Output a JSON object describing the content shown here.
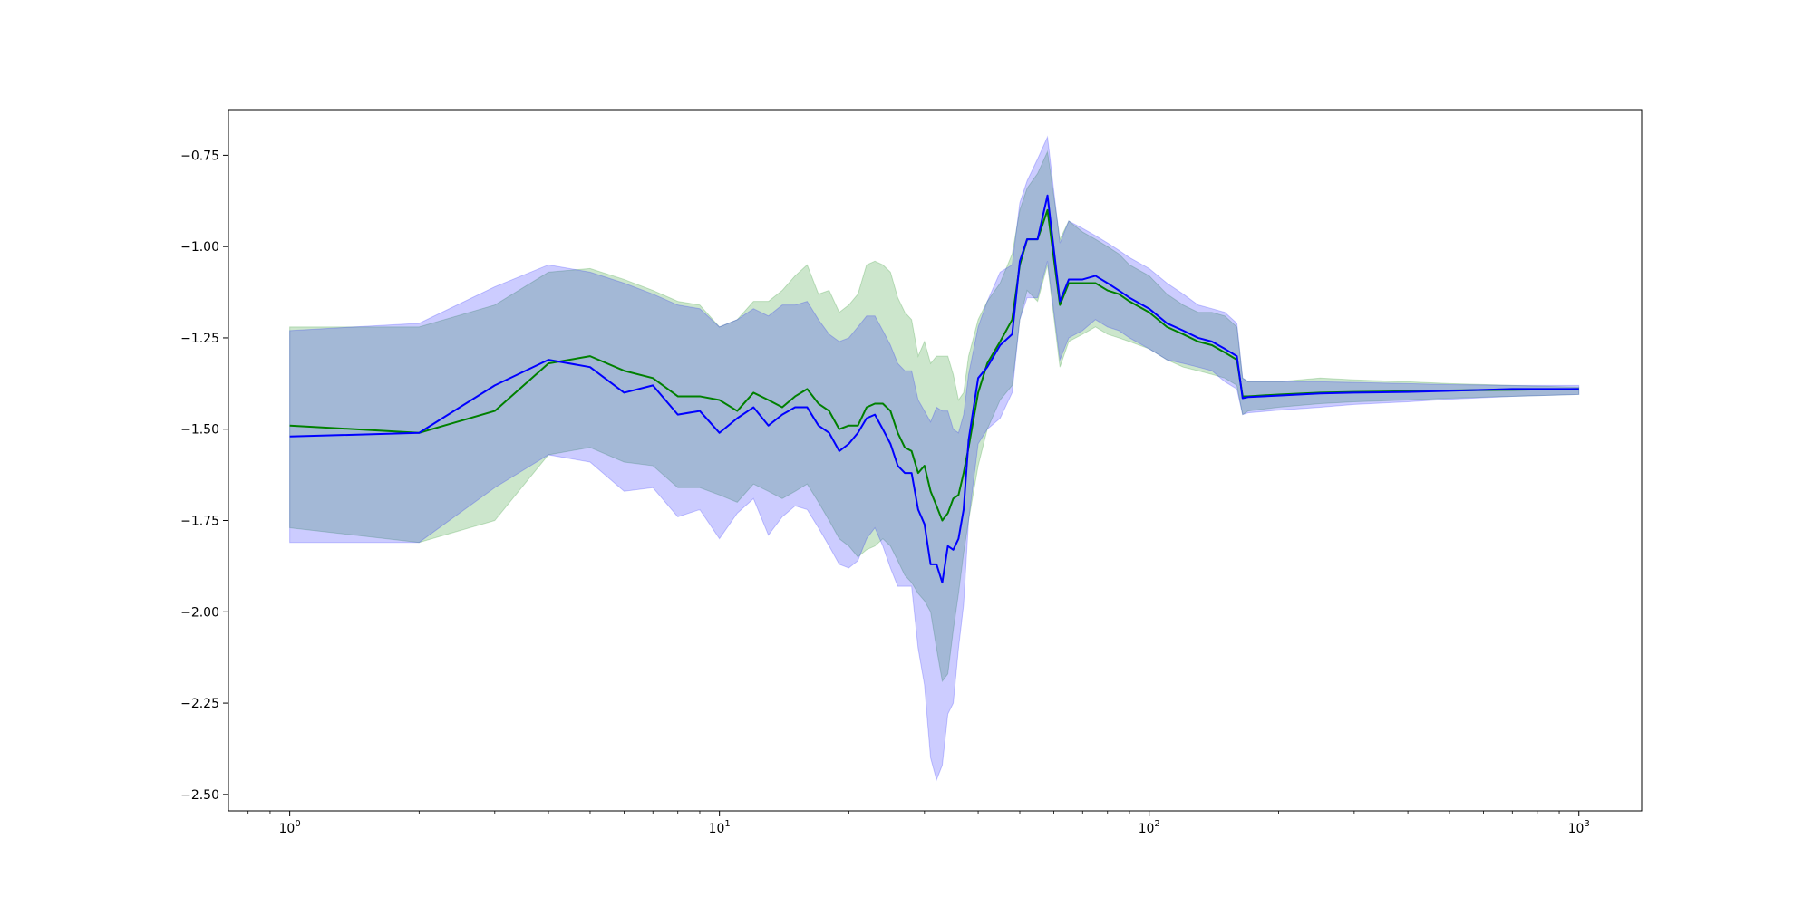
{
  "chart_data": {
    "type": "line",
    "title": "",
    "xlabel": "",
    "ylabel": "",
    "xscale": "log",
    "xlim": [
      0.72,
      1400
    ],
    "ylim": [
      -2.545,
      -0.625
    ],
    "grid": false,
    "legend": "none",
    "xticks": [
      {
        "value": 1,
        "base": "10",
        "exp": "0"
      },
      {
        "value": 10,
        "base": "10",
        "exp": "1"
      },
      {
        "value": 100,
        "base": "10",
        "exp": "2"
      },
      {
        "value": 1000,
        "base": "10",
        "exp": "3"
      }
    ],
    "yticks": [
      {
        "value": -0.75,
        "label": "−0.75"
      },
      {
        "value": -1.0,
        "label": "−1.00"
      },
      {
        "value": -1.25,
        "label": "−1.25"
      },
      {
        "value": -1.5,
        "label": "−1.50"
      },
      {
        "value": -1.75,
        "label": "−1.75"
      },
      {
        "value": -2.0,
        "label": "−2.00"
      },
      {
        "value": -2.25,
        "label": "−2.25"
      },
      {
        "value": -2.5,
        "label": "−2.50"
      }
    ],
    "series": [
      {
        "color": "#008000",
        "band_color": "#008000",
        "band_opacity": 0.2,
        "x": [
          1,
          2,
          3,
          4,
          5,
          6,
          7,
          8,
          9,
          10,
          11,
          12,
          13,
          14,
          15,
          16,
          17,
          18,
          19,
          20,
          21,
          22,
          23,
          24,
          25,
          26,
          27,
          28,
          29,
          30,
          31,
          32,
          33,
          34,
          35,
          36,
          37,
          38,
          40,
          42,
          45,
          48,
          50,
          52,
          55,
          58,
          62,
          65,
          70,
          75,
          80,
          85,
          90,
          100,
          110,
          120,
          130,
          140,
          150,
          160,
          165,
          170,
          200,
          250,
          300,
          400,
          500,
          700,
          1000
        ],
        "y": [
          -1.49,
          -1.51,
          -1.45,
          -1.32,
          -1.3,
          -1.34,
          -1.36,
          -1.41,
          -1.41,
          -1.42,
          -1.45,
          -1.4,
          -1.42,
          -1.44,
          -1.41,
          -1.39,
          -1.43,
          -1.45,
          -1.5,
          -1.49,
          -1.49,
          -1.44,
          -1.43,
          -1.43,
          -1.45,
          -1.51,
          -1.55,
          -1.56,
          -1.62,
          -1.6,
          -1.67,
          -1.71,
          -1.75,
          -1.73,
          -1.69,
          -1.68,
          -1.62,
          -1.55,
          -1.4,
          -1.32,
          -1.26,
          -1.2,
          -1.05,
          -0.98,
          -0.98,
          -0.9,
          -1.16,
          -1.1,
          -1.1,
          -1.1,
          -1.12,
          -1.13,
          -1.15,
          -1.18,
          -1.22,
          -1.24,
          -1.26,
          -1.27,
          -1.29,
          -1.31,
          -1.41,
          -1.41,
          -1.405,
          -1.4,
          -1.398,
          -1.396,
          -1.394,
          -1.392,
          -1.39
        ],
        "upper": [
          -1.22,
          -1.22,
          -1.16,
          -1.07,
          -1.06,
          -1.09,
          -1.12,
          -1.15,
          -1.16,
          -1.22,
          -1.2,
          -1.15,
          -1.15,
          -1.12,
          -1.08,
          -1.05,
          -1.13,
          -1.12,
          -1.18,
          -1.16,
          -1.13,
          -1.05,
          -1.04,
          -1.05,
          -1.07,
          -1.14,
          -1.18,
          -1.2,
          -1.3,
          -1.26,
          -1.32,
          -1.3,
          -1.3,
          -1.3,
          -1.35,
          -1.42,
          -1.4,
          -1.3,
          -1.2,
          -1.15,
          -1.1,
          -1.02,
          -0.9,
          -0.84,
          -0.8,
          -0.74,
          -0.98,
          -0.93,
          -0.96,
          -0.98,
          -1.0,
          -1.02,
          -1.05,
          -1.08,
          -1.13,
          -1.16,
          -1.18,
          -1.18,
          -1.19,
          -1.22,
          -1.36,
          -1.37,
          -1.37,
          -1.36,
          -1.365,
          -1.37,
          -1.375,
          -1.38,
          -1.385
        ],
        "lower": [
          -1.77,
          -1.81,
          -1.75,
          -1.57,
          -1.55,
          -1.59,
          -1.6,
          -1.66,
          -1.66,
          -1.68,
          -1.7,
          -1.65,
          -1.67,
          -1.69,
          -1.67,
          -1.65,
          -1.7,
          -1.75,
          -1.8,
          -1.82,
          -1.85,
          -1.83,
          -1.82,
          -1.8,
          -1.82,
          -1.86,
          -1.9,
          -1.92,
          -1.95,
          -1.97,
          -2.0,
          -2.1,
          -2.19,
          -2.17,
          -2.05,
          -1.95,
          -1.84,
          -1.75,
          -1.6,
          -1.5,
          -1.42,
          -1.38,
          -1.2,
          -1.12,
          -1.15,
          -1.05,
          -1.33,
          -1.26,
          -1.24,
          -1.22,
          -1.24,
          -1.25,
          -1.26,
          -1.28,
          -1.31,
          -1.33,
          -1.34,
          -1.35,
          -1.36,
          -1.38,
          -1.46,
          -1.45,
          -1.44,
          -1.43,
          -1.425,
          -1.42,
          -1.415,
          -1.41,
          -1.405
        ]
      },
      {
        "color": "#0000ff",
        "band_color": "#0000ff",
        "band_opacity": 0.2,
        "x": [
          1,
          2,
          3,
          4,
          5,
          6,
          7,
          8,
          9,
          10,
          11,
          12,
          13,
          14,
          15,
          16,
          17,
          18,
          19,
          20,
          21,
          22,
          23,
          24,
          25,
          26,
          27,
          28,
          29,
          30,
          31,
          32,
          33,
          34,
          35,
          36,
          37,
          38,
          40,
          42,
          45,
          48,
          50,
          52,
          55,
          58,
          62,
          65,
          70,
          75,
          80,
          85,
          90,
          100,
          110,
          120,
          130,
          140,
          150,
          160,
          165,
          170,
          200,
          250,
          300,
          400,
          500,
          700,
          1000
        ],
        "y": [
          -1.52,
          -1.51,
          -1.38,
          -1.31,
          -1.33,
          -1.4,
          -1.38,
          -1.46,
          -1.45,
          -1.51,
          -1.47,
          -1.44,
          -1.49,
          -1.46,
          -1.44,
          -1.44,
          -1.49,
          -1.51,
          -1.56,
          -1.54,
          -1.51,
          -1.47,
          -1.46,
          -1.5,
          -1.54,
          -1.6,
          -1.62,
          -1.62,
          -1.72,
          -1.76,
          -1.87,
          -1.87,
          -1.92,
          -1.82,
          -1.83,
          -1.8,
          -1.72,
          -1.53,
          -1.36,
          -1.33,
          -1.27,
          -1.24,
          -1.04,
          -0.98,
          -0.98,
          -0.86,
          -1.15,
          -1.09,
          -1.09,
          -1.08,
          -1.1,
          -1.12,
          -1.14,
          -1.17,
          -1.21,
          -1.23,
          -1.25,
          -1.26,
          -1.28,
          -1.3,
          -1.415,
          -1.412,
          -1.408,
          -1.402,
          -1.4,
          -1.398,
          -1.395,
          -1.39,
          -1.39
        ],
        "upper": [
          -1.23,
          -1.21,
          -1.11,
          -1.05,
          -1.07,
          -1.1,
          -1.13,
          -1.16,
          -1.17,
          -1.22,
          -1.2,
          -1.17,
          -1.19,
          -1.16,
          -1.16,
          -1.15,
          -1.2,
          -1.24,
          -1.26,
          -1.25,
          -1.22,
          -1.19,
          -1.19,
          -1.23,
          -1.27,
          -1.32,
          -1.34,
          -1.34,
          -1.42,
          -1.45,
          -1.48,
          -1.44,
          -1.45,
          -1.45,
          -1.5,
          -1.51,
          -1.46,
          -1.35,
          -1.22,
          -1.15,
          -1.07,
          -1.05,
          -0.88,
          -0.82,
          -0.76,
          -0.7,
          -0.99,
          -0.93,
          -0.95,
          -0.97,
          -0.99,
          -1.01,
          -1.03,
          -1.06,
          -1.1,
          -1.13,
          -1.16,
          -1.17,
          -1.18,
          -1.21,
          -1.36,
          -1.37,
          -1.37,
          -1.37,
          -1.372,
          -1.375,
          -1.378,
          -1.38,
          -1.38
        ],
        "lower": [
          -1.81,
          -1.81,
          -1.66,
          -1.57,
          -1.59,
          -1.67,
          -1.66,
          -1.74,
          -1.72,
          -1.8,
          -1.73,
          -1.69,
          -1.79,
          -1.74,
          -1.71,
          -1.72,
          -1.77,
          -1.82,
          -1.87,
          -1.88,
          -1.86,
          -1.8,
          -1.77,
          -1.82,
          -1.88,
          -1.93,
          -1.93,
          -1.93,
          -2.1,
          -2.2,
          -2.4,
          -2.46,
          -2.42,
          -2.28,
          -2.25,
          -2.1,
          -1.98,
          -1.75,
          -1.54,
          -1.5,
          -1.47,
          -1.4,
          -1.2,
          -1.14,
          -1.14,
          -1.04,
          -1.31,
          -1.25,
          -1.23,
          -1.2,
          -1.22,
          -1.23,
          -1.25,
          -1.28,
          -1.31,
          -1.32,
          -1.33,
          -1.34,
          -1.37,
          -1.39,
          -1.46,
          -1.455,
          -1.448,
          -1.44,
          -1.432,
          -1.425,
          -1.418,
          -1.41,
          -1.405
        ]
      }
    ]
  }
}
